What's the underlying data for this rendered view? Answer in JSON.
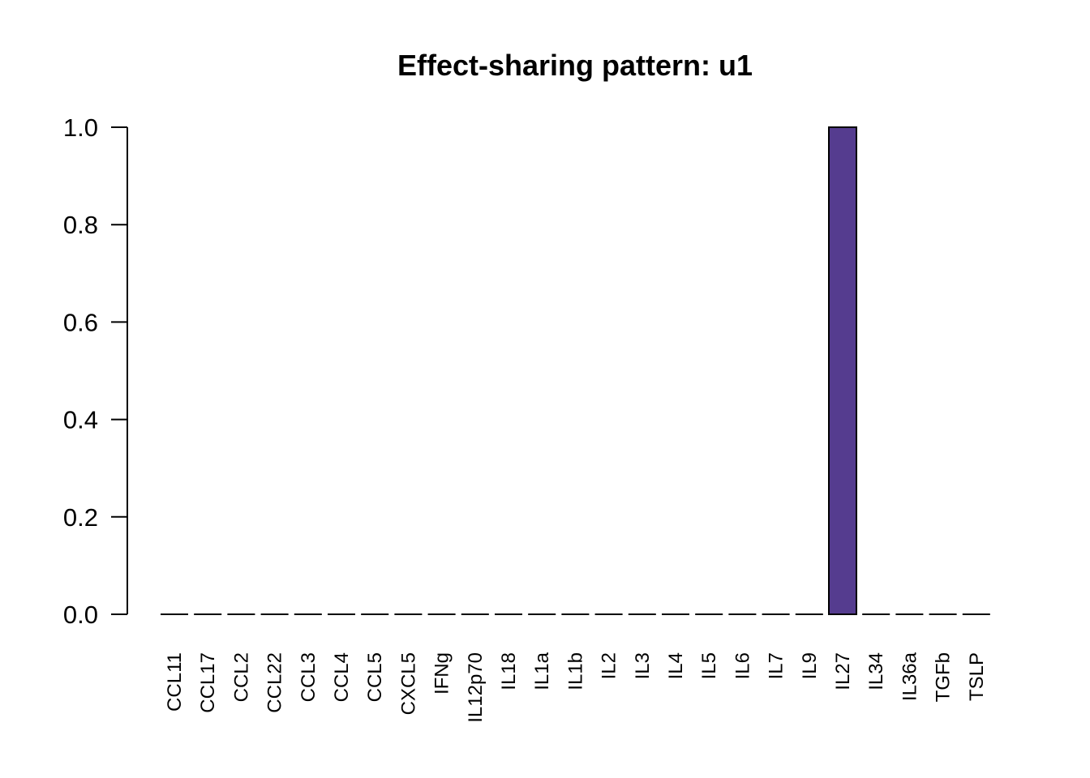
{
  "chart_data": {
    "type": "bar",
    "title": "Effect-sharing pattern: u1",
    "xlabel": "",
    "ylabel": "",
    "categories": [
      "CCL11",
      "CCL17",
      "CCL2",
      "CCL22",
      "CCL3",
      "CCL4",
      "CCL5",
      "CXCL5",
      "IFNg",
      "IL12p70",
      "IL18",
      "IL1a",
      "IL1b",
      "IL2",
      "IL3",
      "IL4",
      "IL5",
      "IL6",
      "IL7",
      "IL9",
      "IL27",
      "IL34",
      "IL36a",
      "TGFb",
      "TSLP"
    ],
    "values": [
      0,
      0,
      0,
      0,
      0,
      0,
      0,
      0,
      0,
      0,
      0,
      0,
      0,
      0,
      0,
      0,
      0,
      0,
      0,
      0,
      1,
      0,
      0,
      0,
      0
    ],
    "ylim": [
      0,
      1
    ],
    "yticks": [
      0.0,
      0.2,
      0.4,
      0.6,
      0.8,
      1.0
    ],
    "ytick_labels": [
      "0.0",
      "0.2",
      "0.4",
      "0.6",
      "0.8",
      "1.0"
    ],
    "bar_color": "#553c8f",
    "grid": false,
    "legend": "none"
  }
}
